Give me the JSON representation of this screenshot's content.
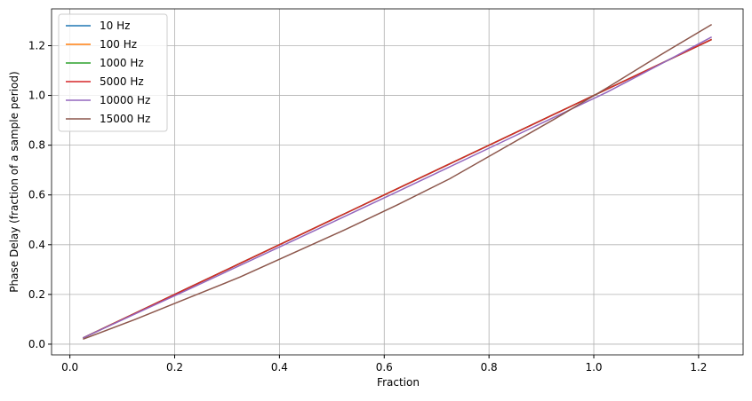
{
  "chart_data": {
    "type": "line",
    "xlabel": "Fraction",
    "ylabel": "Phase Delay (fraction of a sample period)",
    "x": [
      0.025,
      0.125,
      0.225,
      0.325,
      0.425,
      0.525,
      0.625,
      0.725,
      0.825,
      0.925,
      1.025,
      1.125,
      1.225
    ],
    "series": [
      {
        "name": "10 Hz",
        "color": "#1f77b4",
        "values": [
          0.025,
          0.125,
          0.225,
          0.325,
          0.425,
          0.525,
          0.625,
          0.725,
          0.825,
          0.925,
          1.025,
          1.125,
          1.225
        ]
      },
      {
        "name": "100 Hz",
        "color": "#ff7f0e",
        "values": [
          0.025,
          0.125,
          0.225,
          0.325,
          0.425,
          0.525,
          0.625,
          0.725,
          0.825,
          0.925,
          1.025,
          1.125,
          1.225
        ]
      },
      {
        "name": "1000 Hz",
        "color": "#2ca02c",
        "values": [
          0.025,
          0.125,
          0.225,
          0.325,
          0.425,
          0.525,
          0.625,
          0.725,
          0.825,
          0.925,
          1.025,
          1.125,
          1.225
        ]
      },
      {
        "name": "5000 Hz",
        "color": "#d62728",
        "values": [
          0.025,
          0.125,
          0.225,
          0.325,
          0.425,
          0.525,
          0.625,
          0.725,
          0.825,
          0.925,
          1.025,
          1.125,
          1.225
        ]
      },
      {
        "name": "10000 Hz",
        "color": "#9467bd",
        "values": [
          0.025,
          0.122,
          0.219,
          0.317,
          0.415,
          0.514,
          0.613,
          0.713,
          0.813,
          0.913,
          1.013,
          1.123,
          1.235
        ]
      },
      {
        "name": "15000 Hz",
        "color": "#8c564b",
        "values": [
          0.02,
          0.1,
          0.185,
          0.27,
          0.365,
          0.46,
          0.56,
          0.665,
          0.785,
          0.905,
          1.03,
          1.16,
          1.285
        ]
      }
    ],
    "xlim": [
      -0.035,
      1.285
    ],
    "ylim": [
      -0.043,
      1.348
    ],
    "xticks": [
      {
        "value": 0,
        "label": "0.0"
      },
      0.2,
      0.4,
      0.6,
      0.8,
      {
        "value": 1,
        "label": "1.0"
      },
      1.2
    ],
    "yticks": [
      {
        "value": 0,
        "label": "0.0"
      },
      0.2,
      0.4,
      0.6,
      0.8,
      {
        "value": 1,
        "label": "1.0"
      },
      1.2
    ],
    "grid": true,
    "legend": "upper-left"
  }
}
